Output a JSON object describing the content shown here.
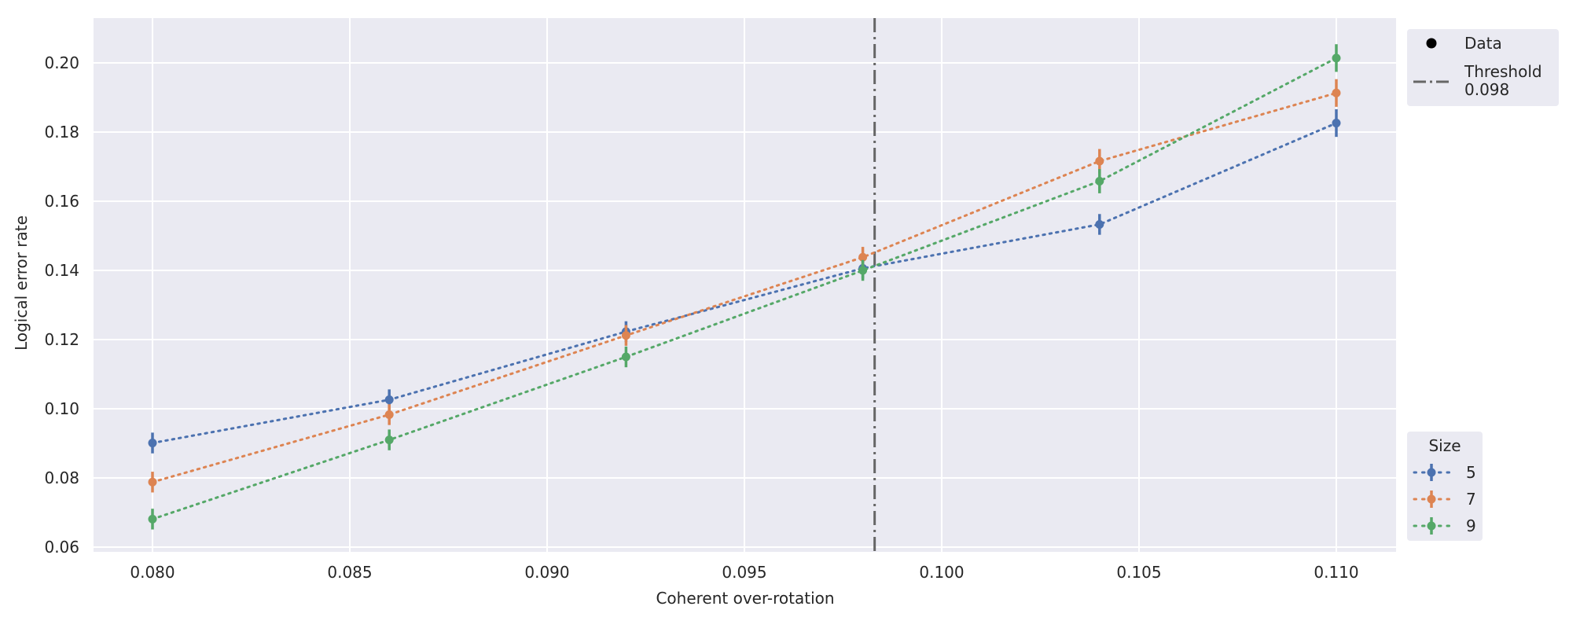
{
  "chart_data": {
    "type": "line",
    "title": "",
    "xlabel": "Coherent over-rotation",
    "ylabel": "Logical error rate",
    "xlim": [
      0.0785,
      0.1112
    ],
    "ylim": [
      0.0592,
      0.2122
    ],
    "xticks": [
      "0.080",
      "0.085",
      "0.090",
      "0.095",
      "0.100",
      "0.105",
      "0.110"
    ],
    "yticks": [
      "0.06",
      "0.08",
      "0.10",
      "0.12",
      "0.14",
      "0.16",
      "0.18",
      "0.20"
    ],
    "grid": true,
    "background": "#eaeaf2",
    "x": [
      0.08,
      0.086,
      0.092,
      0.098,
      0.104,
      0.11
    ],
    "series": [
      {
        "name": "5",
        "color": "#4c72b0",
        "values": [
          0.0901,
          0.1026,
          0.1223,
          0.1406,
          0.1533,
          0.1826
        ],
        "yerr": [
          0.003,
          0.003,
          0.003,
          0.003,
          0.003,
          0.004
        ]
      },
      {
        "name": "7",
        "color": "#dd8452",
        "values": [
          0.0788,
          0.0983,
          0.1212,
          0.1438,
          0.1716,
          0.1913
        ],
        "yerr": [
          0.003,
          0.003,
          0.003,
          0.003,
          0.0035,
          0.004
        ]
      },
      {
        "name": "9",
        "color": "#55a868",
        "values": [
          0.0681,
          0.091,
          0.115,
          0.14,
          0.1658,
          0.2014
        ],
        "yerr": [
          0.003,
          0.003,
          0.003,
          0.003,
          0.0035,
          0.004
        ]
      }
    ],
    "threshold": {
      "value": 0.0983,
      "color": "#666666",
      "style": "dash-dot"
    },
    "legend_main": {
      "placement": "outside-top-right",
      "items": [
        {
          "label": "Data",
          "marker": "dot"
        },
        {
          "label": "Threshold",
          "sublabel": "0.098",
          "marker": "dash-dot"
        }
      ]
    },
    "legend_size": {
      "placement": "outside-bottom-right",
      "title": "Size"
    }
  }
}
